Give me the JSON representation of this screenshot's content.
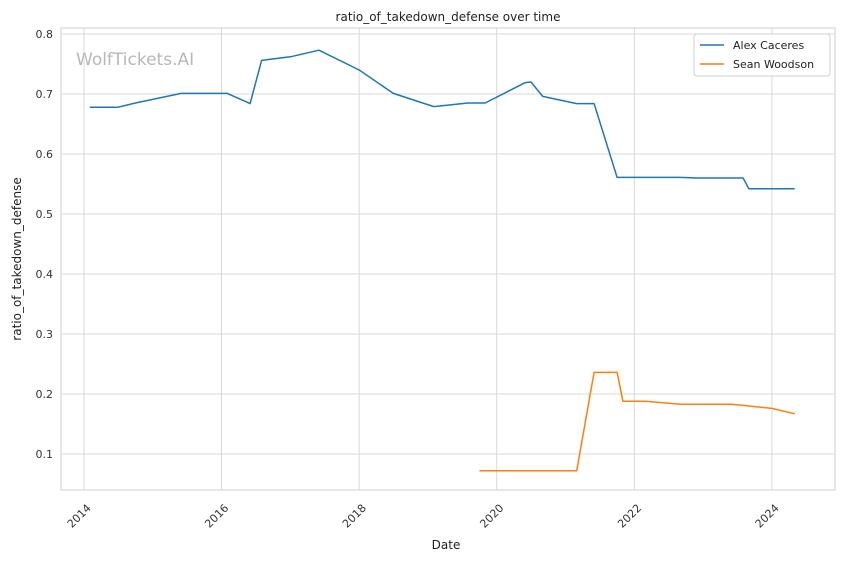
{
  "watermark": "WolfTickets.AI",
  "chart_data": {
    "type": "line",
    "title": "ratio_of_takedown_defense over time",
    "xlabel": "Date",
    "ylabel": "ratio_of_takedown_defense",
    "x_ticks": [
      "2014",
      "2016",
      "2018",
      "2020",
      "2022",
      "2024"
    ],
    "y_ticks": [
      "0.1",
      "0.2",
      "0.3",
      "0.4",
      "0.5",
      "0.6",
      "0.7",
      "0.8"
    ],
    "xlim": [
      "2013-09-01",
      "2024-12-01"
    ],
    "ylim": [
      0.04,
      0.81
    ],
    "grid": true,
    "legend_position": "top-right",
    "series": [
      {
        "name": "Alex Caceres",
        "color": "#1f77b4",
        "points": [
          [
            "2014-02-01",
            0.678
          ],
          [
            "2014-07-01",
            0.678
          ],
          [
            "2014-10-01",
            0.685
          ],
          [
            "2015-06-01",
            0.701
          ],
          [
            "2016-02-01",
            0.701
          ],
          [
            "2016-06-01",
            0.684
          ],
          [
            "2016-08-01",
            0.756
          ],
          [
            "2017-01-01",
            0.762
          ],
          [
            "2017-06-01",
            0.773
          ],
          [
            "2018-01-01",
            0.74
          ],
          [
            "2018-07-01",
            0.701
          ],
          [
            "2019-02-01",
            0.679
          ],
          [
            "2019-08-01",
            0.685
          ],
          [
            "2019-11-01",
            0.685
          ],
          [
            "2020-06-01",
            0.719
          ],
          [
            "2020-07-01",
            0.72
          ],
          [
            "2020-09-01",
            0.696
          ],
          [
            "2021-03-01",
            0.684
          ],
          [
            "2021-06-01",
            0.684
          ],
          [
            "2021-10-01",
            0.561
          ],
          [
            "2022-09-01",
            0.561
          ],
          [
            "2022-12-01",
            0.56
          ],
          [
            "2023-08-01",
            0.56
          ],
          [
            "2023-09-01",
            0.542
          ],
          [
            "2024-05-01",
            0.542
          ]
        ]
      },
      {
        "name": "Sean Woodson",
        "color": "#ff7f0e",
        "points": [
          [
            "2019-10-01",
            0.072
          ],
          [
            "2021-03-01",
            0.072
          ],
          [
            "2021-06-01",
            0.236
          ],
          [
            "2021-10-01",
            0.236
          ],
          [
            "2021-11-01",
            0.188
          ],
          [
            "2022-03-01",
            0.188
          ],
          [
            "2022-09-01",
            0.183
          ],
          [
            "2023-06-01",
            0.183
          ],
          [
            "2023-08-01",
            0.181
          ],
          [
            "2024-01-01",
            0.176
          ],
          [
            "2024-05-01",
            0.167
          ]
        ]
      }
    ]
  }
}
